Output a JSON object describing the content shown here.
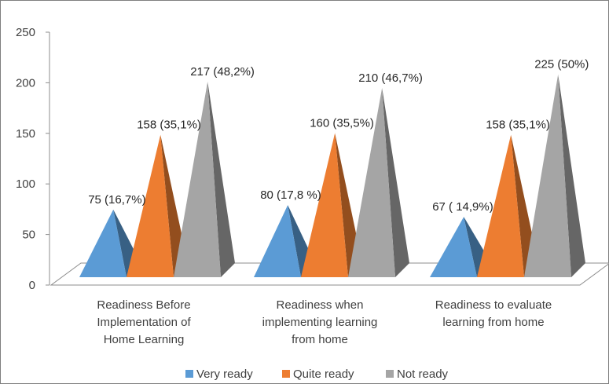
{
  "chart_data": {
    "type": "bar",
    "style": "3d-pyramid",
    "categories": [
      [
        "Readiness Before",
        "Implementation of",
        "Home Learning"
      ],
      [
        "Readiness when",
        "implementing learning",
        "from home"
      ],
      [
        "Readiness to evaluate",
        "learning from home"
      ]
    ],
    "series": [
      {
        "name": "Very ready",
        "color": "#5b9bd5",
        "values": [
          75,
          80,
          67
        ],
        "labels": [
          "75 (16,7%)",
          "80 (17,8 %)",
          "67 ( 14,9%)"
        ]
      },
      {
        "name": "Quite ready",
        "color": "#ed7d31",
        "values": [
          158,
          160,
          158
        ],
        "labels": [
          "158 (35,1%)",
          "160  (35,5%)",
          "158 (35,1%)"
        ]
      },
      {
        "name": "Not ready",
        "color": "#a5a5a5",
        "values": [
          217,
          210,
          225
        ],
        "labels": [
          "217 (48,2%)",
          "210  (46,7%)",
          "225  (50%)"
        ]
      }
    ],
    "ylim": [
      0,
      250
    ],
    "yticks": [
      "0",
      "50",
      "100",
      "150",
      "200",
      "250"
    ],
    "grid": false,
    "legend_position": "bottom"
  }
}
